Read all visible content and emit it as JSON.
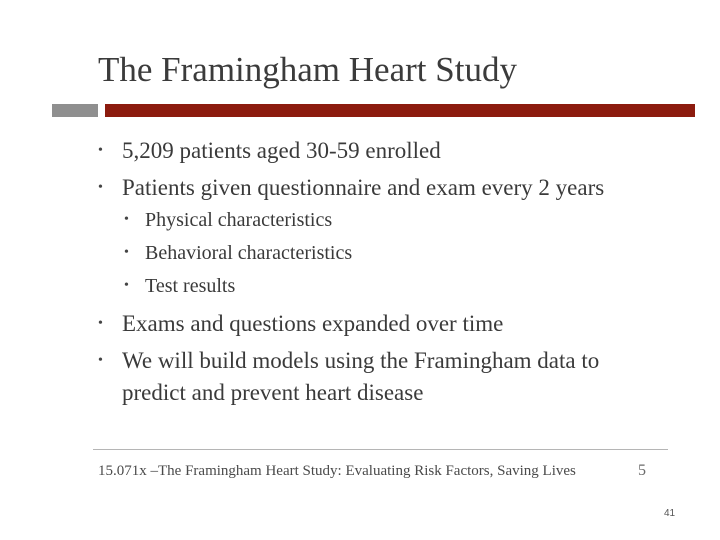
{
  "slide": {
    "title": "The Framingham Heart Study",
    "bullet_symbol": "•",
    "bullets": [
      "5,209 patients aged 30-59 enrolled",
      "Patients given questionnaire and exam every 2 years",
      "Exams and questions expanded over time",
      "We will build models using the Framingham data to",
      "predict and prevent heart disease"
    ],
    "sub_bullets": [
      "Physical characteristics",
      "Behavioral characteristics",
      "Test results"
    ]
  },
  "footer": {
    "course_text": "15.071x –The Framingham Heart Study: Evaluating Risk Factors, Saving Lives",
    "slide_number": "5"
  },
  "page_number": "41",
  "colors": {
    "title_bar_accent": "#8c1b0e",
    "title_bar_gray": "#8f8f8f",
    "text": "#3a3a3a"
  }
}
